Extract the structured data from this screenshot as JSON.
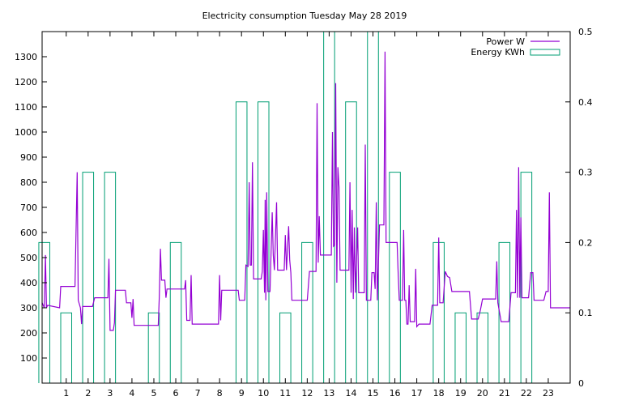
{
  "chart_data": {
    "type": "line",
    "title": "Electricity consumption Tuesday May 28 2019",
    "xlim": [
      -0.1,
      24
    ],
    "ylim_left": [
      0,
      1400
    ],
    "ylim_right": [
      0,
      0.5
    ],
    "x_ticks": [
      1,
      2,
      3,
      4,
      5,
      6,
      7,
      8,
      9,
      10,
      11,
      12,
      13,
      14,
      15,
      16,
      17,
      18,
      19,
      20,
      21,
      22,
      23
    ],
    "y_ticks_left": [
      100,
      200,
      300,
      400,
      500,
      600,
      700,
      800,
      900,
      1000,
      1100,
      1200,
      1300
    ],
    "y_ticks_right": [
      0,
      0.1,
      0.2,
      0.3,
      0.4,
      0.5
    ],
    "grid": false,
    "legend_position": "top-right",
    "series": [
      {
        "name": "Power W",
        "axis": "left",
        "style": "line",
        "color": "#9400d3",
        "points": [
          [
            -0.1,
            320
          ],
          [
            0.0,
            300
          ],
          [
            0.05,
            510
          ],
          [
            0.1,
            300
          ],
          [
            0.15,
            310
          ],
          [
            0.7,
            300
          ],
          [
            0.75,
            385
          ],
          [
            1.4,
            385
          ],
          [
            1.5,
            840
          ],
          [
            1.55,
            330
          ],
          [
            1.65,
            300
          ],
          [
            1.7,
            235
          ],
          [
            1.75,
            305
          ],
          [
            2.2,
            305
          ],
          [
            2.3,
            340
          ],
          [
            2.9,
            340
          ],
          [
            2.95,
            495
          ],
          [
            3.0,
            210
          ],
          [
            3.15,
            210
          ],
          [
            3.2,
            240
          ],
          [
            3.25,
            370
          ],
          [
            3.7,
            370
          ],
          [
            3.75,
            320
          ],
          [
            3.95,
            320
          ],
          [
            4.0,
            260
          ],
          [
            4.05,
            335
          ],
          [
            4.1,
            230
          ],
          [
            5.2,
            230
          ],
          [
            5.25,
            345
          ],
          [
            5.3,
            535
          ],
          [
            5.35,
            410
          ],
          [
            5.5,
            410
          ],
          [
            5.55,
            340
          ],
          [
            5.6,
            375
          ],
          [
            6.4,
            375
          ],
          [
            6.45,
            410
          ],
          [
            6.5,
            250
          ],
          [
            6.65,
            250
          ],
          [
            6.7,
            430
          ],
          [
            6.75,
            235
          ],
          [
            7.95,
            235
          ],
          [
            8.0,
            430
          ],
          [
            8.05,
            250
          ],
          [
            8.1,
            370
          ],
          [
            8.85,
            370
          ],
          [
            8.9,
            330
          ],
          [
            9.15,
            330
          ],
          [
            9.2,
            470
          ],
          [
            9.3,
            465
          ],
          [
            9.35,
            800
          ],
          [
            9.4,
            470
          ],
          [
            9.45,
            470
          ],
          [
            9.5,
            880
          ],
          [
            9.55,
            415
          ],
          [
            9.9,
            415
          ],
          [
            9.95,
            445
          ],
          [
            10.0,
            610
          ],
          [
            10.05,
            360
          ],
          [
            10.08,
            730
          ],
          [
            10.11,
            330
          ],
          [
            10.15,
            760
          ],
          [
            10.2,
            365
          ],
          [
            10.3,
            365
          ],
          [
            10.35,
            520
          ],
          [
            10.4,
            680
          ],
          [
            10.45,
            510
          ],
          [
            10.5,
            450
          ],
          [
            10.6,
            720
          ],
          [
            10.65,
            450
          ],
          [
            10.95,
            450
          ],
          [
            11.0,
            590
          ],
          [
            11.05,
            450
          ],
          [
            11.15,
            625
          ],
          [
            11.2,
            490
          ],
          [
            11.25,
            440
          ],
          [
            11.3,
            330
          ],
          [
            12.0,
            330
          ],
          [
            12.1,
            445
          ],
          [
            12.4,
            445
          ],
          [
            12.45,
            1115
          ],
          [
            12.5,
            480
          ],
          [
            12.55,
            665
          ],
          [
            12.6,
            510
          ],
          [
            13.1,
            510
          ],
          [
            13.15,
            1000
          ],
          [
            13.2,
            545
          ],
          [
            13.25,
            550
          ],
          [
            13.3,
            1195
          ],
          [
            13.35,
            400
          ],
          [
            13.4,
            860
          ],
          [
            13.45,
            780
          ],
          [
            13.5,
            450
          ],
          [
            13.9,
            450
          ],
          [
            13.95,
            800
          ],
          [
            14.0,
            360
          ],
          [
            14.05,
            690
          ],
          [
            14.1,
            335
          ],
          [
            14.15,
            620
          ],
          [
            14.2,
            360
          ],
          [
            14.3,
            620
          ],
          [
            14.35,
            360
          ],
          [
            14.6,
            360
          ],
          [
            14.65,
            950
          ],
          [
            14.7,
            330
          ],
          [
            14.9,
            330
          ],
          [
            14.95,
            440
          ],
          [
            15.05,
            440
          ],
          [
            15.1,
            375
          ],
          [
            15.15,
            720
          ],
          [
            15.2,
            330
          ],
          [
            15.3,
            630
          ],
          [
            15.5,
            630
          ],
          [
            15.55,
            1320
          ],
          [
            15.6,
            560
          ],
          [
            16.1,
            560
          ],
          [
            16.15,
            440
          ],
          [
            16.2,
            330
          ],
          [
            16.35,
            330
          ],
          [
            16.4,
            610
          ],
          [
            16.45,
            330
          ],
          [
            16.5,
            330
          ],
          [
            16.55,
            235
          ],
          [
            16.6,
            235
          ],
          [
            16.65,
            390
          ],
          [
            16.7,
            245
          ],
          [
            16.9,
            245
          ],
          [
            16.95,
            455
          ],
          [
            17.0,
            225
          ],
          [
            17.1,
            235
          ],
          [
            17.6,
            235
          ],
          [
            17.7,
            310
          ],
          [
            17.95,
            310
          ],
          [
            18.0,
            580
          ],
          [
            18.05,
            320
          ],
          [
            18.2,
            320
          ],
          [
            18.3,
            445
          ],
          [
            18.4,
            425
          ],
          [
            18.5,
            420
          ],
          [
            18.6,
            365
          ],
          [
            19.4,
            365
          ],
          [
            19.5,
            255
          ],
          [
            19.8,
            255
          ],
          [
            19.9,
            290
          ],
          [
            20.0,
            335
          ],
          [
            20.6,
            335
          ],
          [
            20.65,
            485
          ],
          [
            20.7,
            320
          ],
          [
            20.85,
            245
          ],
          [
            21.2,
            245
          ],
          [
            21.3,
            360
          ],
          [
            21.5,
            360
          ],
          [
            21.55,
            690
          ],
          [
            21.6,
            340
          ],
          [
            21.65,
            860
          ],
          [
            21.7,
            340
          ],
          [
            21.75,
            660
          ],
          [
            21.8,
            340
          ],
          [
            22.1,
            340
          ],
          [
            22.2,
            440
          ],
          [
            22.3,
            440
          ],
          [
            22.35,
            330
          ],
          [
            22.8,
            330
          ],
          [
            22.9,
            365
          ],
          [
            23.0,
            365
          ],
          [
            23.05,
            760
          ],
          [
            23.1,
            300
          ],
          [
            24.0,
            300
          ]
        ]
      },
      {
        "name": "Energy KWh",
        "axis": "right",
        "style": "step-boxes",
        "color": "#009e73",
        "x": [
          0,
          1,
          2,
          3,
          4,
          5,
          6,
          7,
          8,
          9,
          10,
          11,
          12,
          13,
          14,
          15,
          16,
          17,
          18,
          19,
          20,
          21,
          22,
          23
        ],
        "values": [
          0.2,
          0.1,
          0.3,
          0.3,
          0,
          0.1,
          0.2,
          0,
          0,
          0.4,
          0.4,
          0.1,
          0.2,
          0.5,
          0.4,
          0.5,
          0.3,
          0,
          0.2,
          0.1,
          0.1,
          0.2,
          0.3,
          0
        ]
      }
    ]
  }
}
